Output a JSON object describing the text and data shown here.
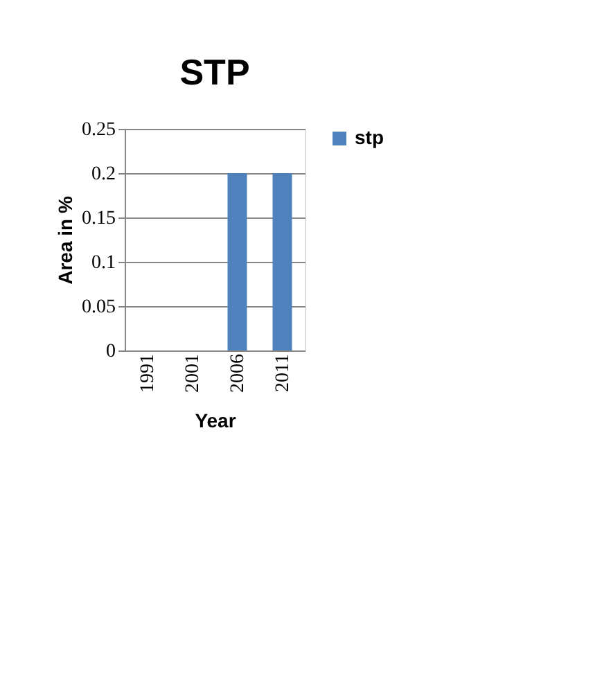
{
  "chart_data": {
    "type": "bar",
    "title": "STP",
    "xlabel": "Year",
    "ylabel": "Area in %",
    "categories": [
      "1991",
      "2001",
      "2006",
      "2011"
    ],
    "series": [
      {
        "name": "stp",
        "color": "#4f81bd",
        "values": [
          0,
          0,
          0.2,
          0.2
        ]
      }
    ],
    "ylim": [
      0,
      0.25
    ],
    "yticks": [
      0,
      0.05,
      0.1,
      0.15,
      0.2,
      0.25
    ],
    "grid": "y",
    "legend": "right"
  }
}
